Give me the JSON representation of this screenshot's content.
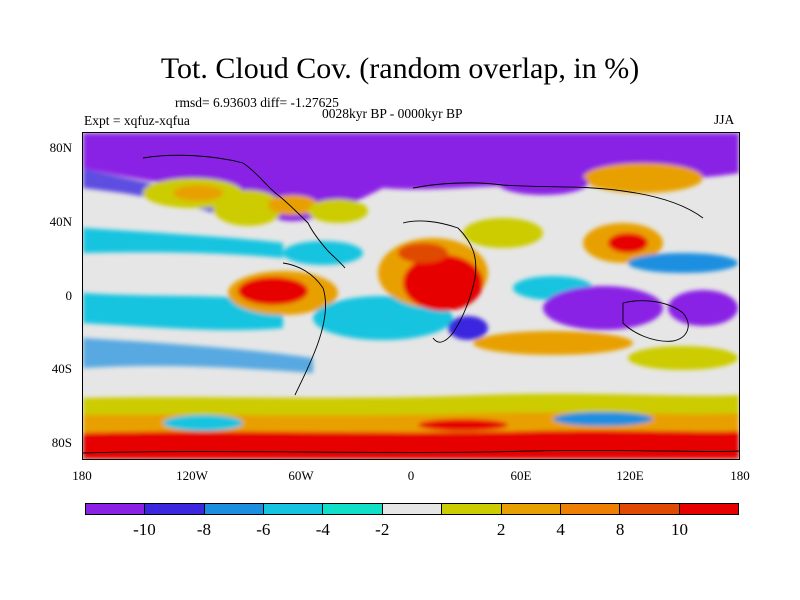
{
  "title": "Tot. Cloud Cov. (random overlap, in %)",
  "stats": "rmsd= 6.93603 diff= -1.27625",
  "experiment": "Expt = xqfuz-xqfua",
  "period": "0028kyr BP - 0000kyr BP",
  "season": "JJA",
  "lat_labels": [
    "80N",
    "40N",
    "0",
    "40S",
    "80S"
  ],
  "lon_labels": [
    "180",
    "120W",
    "60W",
    "0",
    "60E",
    "120E",
    "180"
  ],
  "colorbar": {
    "colors": [
      "#8a22e6",
      "#3b27e0",
      "#1a8fe0",
      "#14c4e0",
      "#10e0c8",
      "#e6e6e6",
      "#cccc00",
      "#e8a000",
      "#ee7f00",
      "#e04a00",
      "#e60000"
    ],
    "labels": [
      "-10",
      "-8",
      "-6",
      "-4",
      "-2",
      "2",
      "4",
      "8",
      "10"
    ]
  }
}
